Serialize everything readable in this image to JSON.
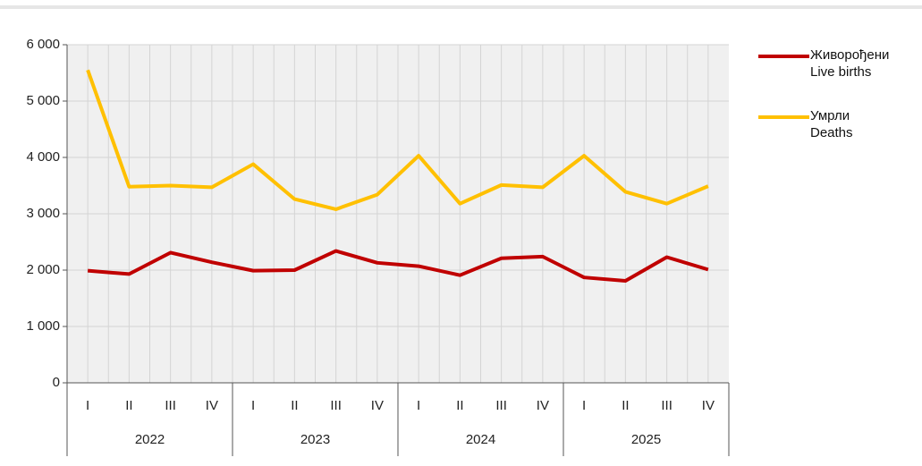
{
  "chart_data": {
    "type": "line",
    "categories": [
      "I",
      "II",
      "III",
      "IV",
      "I",
      "II",
      "III",
      "IV",
      "I",
      "II",
      "III",
      "IV",
      "I",
      "II",
      "III",
      "IV"
    ],
    "groups": [
      "2022",
      "2023",
      "2024",
      "2025"
    ],
    "series": [
      {
        "name": "Живорођени\nLive births",
        "color": "#c00000",
        "values": [
          1990,
          1930,
          2310,
          2140,
          1990,
          2000,
          2340,
          2130,
          2070,
          1910,
          2210,
          2240,
          1870,
          1810,
          2230,
          2010
        ]
      },
      {
        "name": "Умрли\nDeaths",
        "color": "#ffc000",
        "values": [
          5550,
          3480,
          3500,
          3470,
          3880,
          3260,
          3080,
          3340,
          4030,
          3180,
          3510,
          3470,
          4030,
          3390,
          3180,
          3490
        ]
      }
    ],
    "ylim": [
      0,
      6000
    ],
    "yticks": [
      0,
      {
        "value": 1000,
        "label": "1 000"
      },
      {
        "value": 2000,
        "label": "2 000"
      },
      {
        "value": 3000,
        "label": "3 000"
      },
      {
        "value": 4000,
        "label": "4 000"
      },
      {
        "value": 5000,
        "label": "5 000"
      },
      {
        "value": 6000,
        "label": "6 000"
      }
    ],
    "grid": true
  }
}
